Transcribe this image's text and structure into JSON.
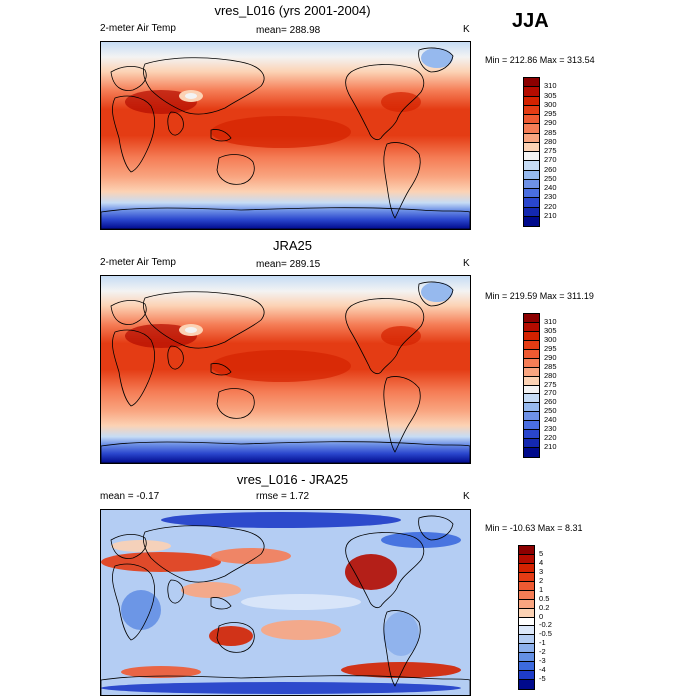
{
  "season": "JJA",
  "panels": [
    {
      "title": "vres_L016 (yrs 2001-2004)",
      "left_label": "2-meter Air Temp",
      "center_label": "mean= 288.98",
      "units": "K",
      "minmax": "Min = 212.86 Max = 313.54",
      "colorbar": {
        "labels": [
          "310",
          "305",
          "300",
          "295",
          "290",
          "285",
          "280",
          "275",
          "270",
          "260",
          "250",
          "240",
          "230",
          "220",
          "210"
        ],
        "colors": [
          "#8c0000",
          "#b40c00",
          "#d42200",
          "#e43c14",
          "#ee5a32",
          "#f57d56",
          "#f9a580",
          "#fcd2b4",
          "#f3f3f3",
          "#c6dcf5",
          "#96b9ee",
          "#6e91e6",
          "#4a6ee0",
          "#2a46cd",
          "#1428b0",
          "#000a8c"
        ]
      },
      "map_kind": "absolute"
    },
    {
      "title": "JRA25",
      "left_label": "2-meter Air Temp",
      "center_label": "mean= 289.15",
      "units": "K",
      "minmax": "Min = 219.59 Max = 311.19",
      "colorbar": {
        "labels": [
          "310",
          "305",
          "300",
          "295",
          "290",
          "285",
          "280",
          "275",
          "270",
          "260",
          "250",
          "240",
          "230",
          "220",
          "210"
        ],
        "colors": [
          "#8c0000",
          "#b40c00",
          "#d42200",
          "#e43c14",
          "#ee5a32",
          "#f57d56",
          "#f9a580",
          "#fcd2b4",
          "#f3f3f3",
          "#c6dcf5",
          "#96b9ee",
          "#6e91e6",
          "#4a6ee0",
          "#2a46cd",
          "#1428b0",
          "#000a8c"
        ]
      },
      "map_kind": "absolute"
    },
    {
      "title": "vres_L016 - JRA25",
      "left_label": "mean =  -0.17",
      "center_label": "rmse =    1.72",
      "units": "K",
      "minmax": "Min = -10.63 Max =   8.31",
      "colorbar": {
        "labels": [
          "5",
          "4",
          "3",
          "2",
          "1",
          "0.5",
          "0.2",
          "0",
          "-0.2",
          "-0.5",
          "-1",
          "-2",
          "-3",
          "-4",
          "-5"
        ],
        "colors": [
          "#8c0000",
          "#b40c00",
          "#d42200",
          "#e43c14",
          "#ee5a32",
          "#f57d56",
          "#f9a580",
          "#fcd2b4",
          "#ffffff",
          "#dce8fa",
          "#b4cdf3",
          "#8cb0ec",
          "#6490e4",
          "#3c6ade",
          "#1e3cc8",
          "#000a8c"
        ]
      },
      "map_kind": "difference"
    }
  ]
}
